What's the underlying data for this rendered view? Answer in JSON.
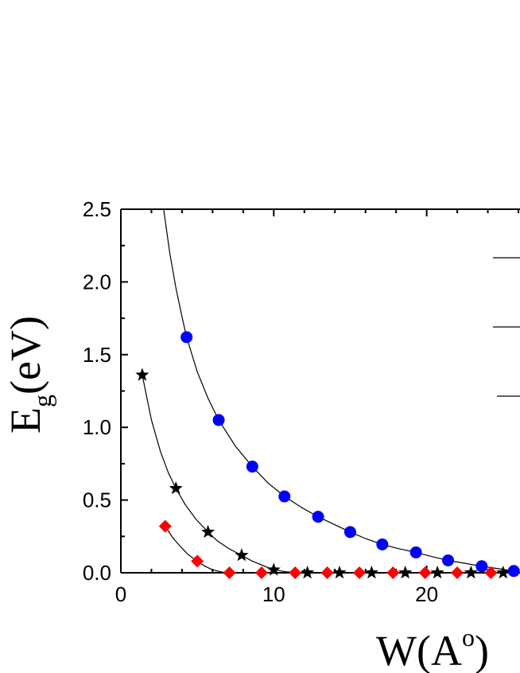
{
  "chart_data": {
    "type": "scatter",
    "xlabel": {
      "main": "W(A",
      "sup": "o",
      "close": ")"
    },
    "ylabel": {
      "main": "E",
      "sub": "g",
      "rest": "(eV)"
    },
    "xlim": [
      0,
      26
    ],
    "ylim": [
      0,
      2.5
    ],
    "x_ticks": [
      "0",
      "10",
      "20"
    ],
    "y_ticks": [
      "0.0",
      "0.5",
      "1.0",
      "1.5",
      "2.0",
      "2.5"
    ],
    "grid": false,
    "legend": "partially visible at right edge, only line segments shown",
    "series": [
      {
        "marker": "circle",
        "color": "#0000ff",
        "x": [
          4.3,
          6.4,
          8.6,
          10.7,
          12.9,
          15.0,
          17.1,
          19.3,
          21.4,
          23.6,
          25.7
        ],
        "y": [
          1.62,
          1.05,
          0.73,
          0.525,
          0.385,
          0.28,
          0.195,
          0.14,
          0.085,
          0.045,
          0.012
        ],
        "curve_x": [
          2.8,
          3.2,
          3.6,
          4.0,
          4.3,
          5.0,
          5.7,
          6.4,
          7.5,
          8.6,
          9.6,
          10.7,
          11.8,
          12.9,
          14.0,
          15.0,
          16.0,
          17.1,
          18.2,
          19.3,
          20.4,
          21.4,
          22.5,
          23.6,
          24.7,
          25.7,
          26.0
        ],
        "curve_y": [
          2.5,
          2.2,
          1.96,
          1.76,
          1.62,
          1.38,
          1.2,
          1.05,
          0.87,
          0.73,
          0.62,
          0.525,
          0.45,
          0.385,
          0.33,
          0.28,
          0.235,
          0.195,
          0.165,
          0.14,
          0.11,
          0.085,
          0.065,
          0.045,
          0.028,
          0.012,
          0.008
        ]
      },
      {
        "marker": "star",
        "color": "#000000",
        "x": [
          1.4,
          3.6,
          5.7,
          7.9,
          10.0,
          12.2,
          14.3,
          16.4,
          18.6,
          20.7,
          22.9,
          25.0
        ],
        "y": [
          1.36,
          0.58,
          0.28,
          0.12,
          0.02,
          0.0,
          0.0,
          0.0,
          0.0,
          0.0,
          0.0,
          0.0
        ],
        "curve_x": [
          1.4,
          2.0,
          2.6,
          3.1,
          3.6,
          4.2,
          4.9,
          5.7,
          6.3,
          7.0,
          7.9,
          8.6,
          9.3,
          10.0,
          10.8,
          11.5,
          12.2,
          26.0
        ],
        "curve_y": [
          1.36,
          1.05,
          0.83,
          0.69,
          0.58,
          0.47,
          0.37,
          0.28,
          0.22,
          0.17,
          0.12,
          0.08,
          0.05,
          0.02,
          0.007,
          0.002,
          0.0,
          0.0
        ]
      },
      {
        "marker": "diamond",
        "color": "#ff0000",
        "x": [
          2.9,
          5.0,
          7.1,
          9.2,
          11.4,
          13.5,
          15.6,
          17.8,
          19.9,
          22.0,
          24.2
        ],
        "y": [
          0.32,
          0.08,
          0.0,
          0.0,
          0.0,
          0.0,
          0.0,
          0.0,
          0.0,
          0.0,
          0.0
        ],
        "curve_x": [
          2.9,
          3.4,
          3.9,
          4.4,
          5.0,
          5.5,
          6.0,
          6.6,
          7.1,
          26.0
        ],
        "curve_y": [
          0.32,
          0.24,
          0.18,
          0.125,
          0.08,
          0.045,
          0.02,
          0.005,
          0.0,
          0.0
        ]
      }
    ]
  }
}
